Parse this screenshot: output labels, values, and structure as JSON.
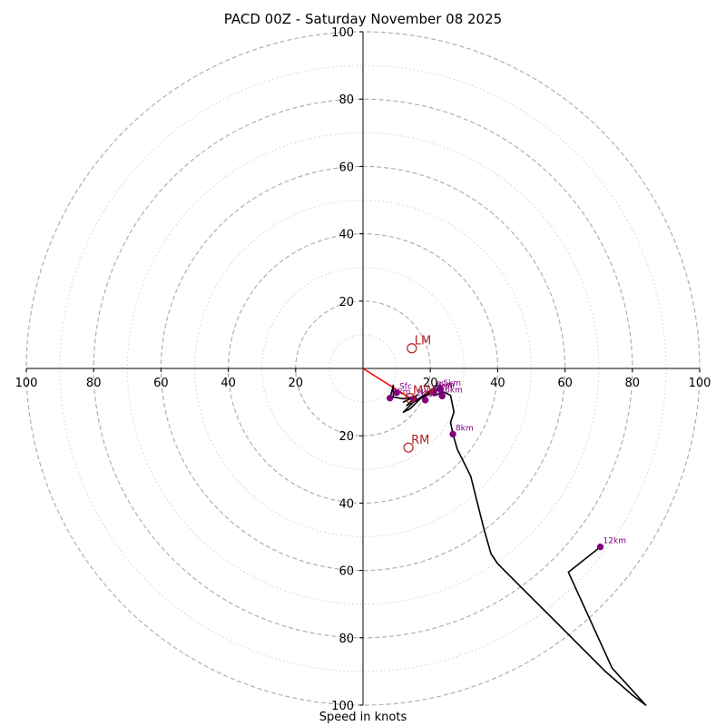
{
  "chart_data": {
    "type": "hodograph",
    "title": "PACD 00Z - Saturday November 08 2025",
    "xlabel": "Speed in knots",
    "rmax": 100,
    "ring_ticks": [
      20,
      40,
      60,
      80,
      100
    ],
    "axis_tick_labels": {
      "left": [
        "100",
        "80",
        "60",
        "40",
        "20"
      ],
      "right": [
        "20",
        "40",
        "60",
        "80",
        "100"
      ],
      "up": [
        "20",
        "40",
        "60",
        "80",
        "100"
      ],
      "down": [
        "20",
        "40",
        "60",
        "80",
        "100"
      ]
    },
    "dashed_rings": [
      10,
      30,
      50,
      70,
      90
    ],
    "grid_dashed": true,
    "trace": [
      [
        8,
        -9
      ],
      [
        9,
        -5
      ],
      [
        9,
        -8.5
      ],
      [
        12,
        -9
      ],
      [
        15,
        -8.5
      ],
      [
        12,
        -10
      ],
      [
        16,
        -8
      ],
      [
        13,
        -11
      ],
      [
        16,
        -9
      ],
      [
        12,
        -13
      ],
      [
        14,
        -12
      ],
      [
        17,
        -9
      ],
      [
        15,
        -10
      ],
      [
        18,
        -8
      ],
      [
        20,
        -7
      ],
      [
        17,
        -9
      ],
      [
        19,
        -8
      ],
      [
        21,
        -6
      ],
      [
        18,
        -8
      ],
      [
        20,
        -7
      ],
      [
        22,
        -5
      ],
      [
        19,
        -8
      ],
      [
        21,
        -7
      ],
      [
        23,
        -5
      ],
      [
        21,
        -8
      ],
      [
        24,
        -7
      ],
      [
        26,
        -8
      ],
      [
        27,
        -13
      ],
      [
        26,
        -16
      ],
      [
        26.7,
        -19.5
      ],
      [
        28,
        -24
      ],
      [
        32,
        -32
      ],
      [
        34,
        -40
      ],
      [
        36,
        -48
      ],
      [
        38,
        -55
      ],
      [
        40,
        -58
      ],
      [
        48,
        -66
      ],
      [
        56,
        -74
      ],
      [
        64,
        -82
      ],
      [
        72,
        -90
      ],
      [
        80,
        -97
      ],
      [
        84,
        -100
      ],
      [
        74,
        -89
      ],
      [
        61,
        -60.5
      ],
      [
        70.5,
        -53
      ]
    ],
    "height_markers": [
      {
        "label": "Sfc",
        "u": 10,
        "v": -7.2
      },
      {
        "label": "1km",
        "u": 8,
        "v": -8.8
      },
      {
        "label": "2km",
        "u": 15,
        "v": -9
      },
      {
        "label": "3km",
        "u": 18.5,
        "v": -9.4
      },
      {
        "label": "4km",
        "u": 20.5,
        "v": -7
      },
      {
        "label": "5km",
        "u": 23,
        "v": -6.2
      },
      {
        "label": "6km",
        "u": 23.5,
        "v": -8.2
      },
      {
        "label": "7km",
        "u": 21,
        "v": -6.8
      },
      {
        "label": "8km",
        "u": 26.7,
        "v": -19.5
      },
      {
        "label": "12km",
        "u": 70.5,
        "v": -53
      }
    ],
    "storm_motion": [
      {
        "label": "LM",
        "u": 14.5,
        "v": 6
      },
      {
        "label": "RM",
        "u": 13.5,
        "v": -23.5
      },
      {
        "label": "MW",
        "u": 14,
        "v": -8.8
      }
    ],
    "shear_vector": {
      "from": [
        0,
        0
      ],
      "to": [
        13.5,
        -8.5
      ]
    },
    "colors": {
      "trace": "#000000",
      "marker": "#800080",
      "storm": "#b22222",
      "shear": "#ff0000",
      "grid": "#b0b0b0",
      "axes": "#000000"
    }
  }
}
